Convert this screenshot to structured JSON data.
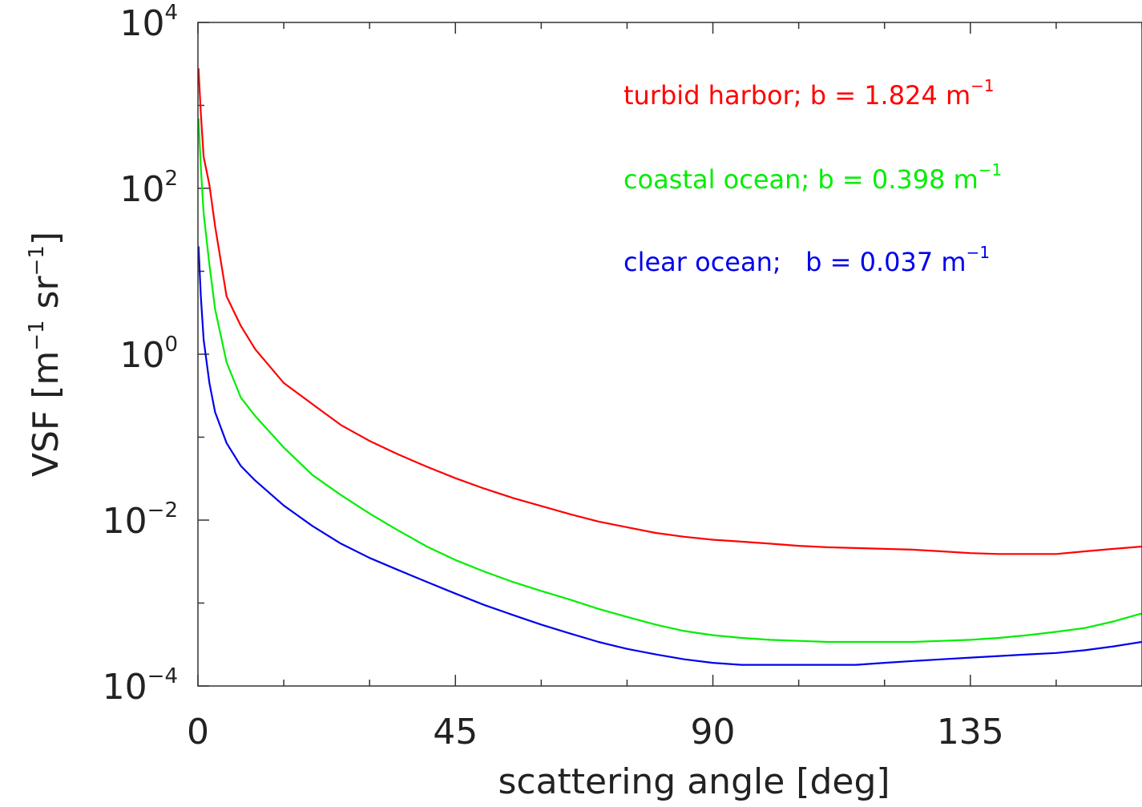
{
  "chart_data": {
    "type": "line",
    "title": "",
    "xlabel": "scattering angle [deg]",
    "ylabel_parts": {
      "pre": "VSF [m",
      "exp1": "−1",
      "mid": " sr",
      "exp2": "−1",
      "post": "]"
    },
    "x_scale": "linear",
    "y_scale": "log",
    "xlim": [
      0,
      165
    ],
    "ylim": [
      0.0001,
      10000
    ],
    "x_ticks": [
      {
        "value": 0,
        "label": "0"
      },
      {
        "value": 45,
        "label": "45"
      },
      {
        "value": 90,
        "label": "90"
      },
      {
        "value": 135,
        "label": "135"
      }
    ],
    "y_ticks": [
      {
        "value": 10000,
        "base": "10",
        "exp": "4"
      },
      {
        "value": 100,
        "base": "10",
        "exp": "2"
      },
      {
        "value": 1,
        "base": "10",
        "exp": "0"
      },
      {
        "value": 0.01,
        "base": "10",
        "exp": "−2"
      },
      {
        "value": 0.0001,
        "base": "10",
        "exp": "−4"
      }
    ],
    "legend_position": "top-right",
    "series": [
      {
        "name": "turbid harbor",
        "legend_text": "turbid harbor; b = 1.824 m",
        "legend_exp": "−1",
        "color": "#ff0000",
        "x": [
          0.1,
          0.5,
          1,
          2,
          3,
          5,
          7.5,
          10,
          15,
          20,
          25,
          30,
          35,
          40,
          45,
          50,
          55,
          60,
          65,
          70,
          75,
          80,
          85,
          90,
          95,
          100,
          105,
          110,
          115,
          120,
          125,
          130,
          135,
          140,
          145,
          150,
          155,
          160,
          165
        ],
        "y": [
          2800,
          800,
          240,
          110,
          35,
          5,
          2.2,
          1.15,
          0.45,
          0.25,
          0.14,
          0.09,
          0.062,
          0.044,
          0.032,
          0.024,
          0.0185,
          0.0148,
          0.0118,
          0.0096,
          0.0082,
          0.007,
          0.0063,
          0.0058,
          0.0055,
          0.0052,
          0.0049,
          0.0047,
          0.0046,
          0.0045,
          0.0044,
          0.0042,
          0.004,
          0.0039,
          0.0039,
          0.0039,
          0.0042,
          0.0045,
          0.0048
        ]
      },
      {
        "name": "coastal ocean",
        "legend_text": "coastal ocean; b = 0.398 m",
        "legend_exp": "−1",
        "color": "#00ee00",
        "x": [
          0.1,
          0.5,
          1,
          2,
          3,
          5,
          7.5,
          10,
          15,
          20,
          25,
          30,
          35,
          40,
          45,
          50,
          55,
          60,
          65,
          70,
          75,
          80,
          85,
          90,
          95,
          100,
          105,
          110,
          115,
          120,
          125,
          130,
          135,
          140,
          145,
          150,
          155,
          160,
          165
        ],
        "y": [
          700,
          180,
          50,
          12,
          3.5,
          0.8,
          0.3,
          0.18,
          0.075,
          0.035,
          0.02,
          0.012,
          0.0075,
          0.0048,
          0.0033,
          0.0024,
          0.0018,
          0.0014,
          0.0011,
          0.00085,
          0.00068,
          0.00055,
          0.00046,
          0.00041,
          0.00038,
          0.00036,
          0.00035,
          0.00034,
          0.00034,
          0.00034,
          0.00034,
          0.00035,
          0.00036,
          0.00038,
          0.00041,
          0.00045,
          0.0005,
          0.0006,
          0.00075
        ]
      },
      {
        "name": "clear ocean",
        "legend_text": "clear ocean;   b = 0.037 m",
        "legend_exp": "−1",
        "color": "#0000ee",
        "x": [
          0.1,
          0.5,
          1,
          2,
          3,
          5,
          7.5,
          10,
          15,
          20,
          25,
          30,
          35,
          40,
          45,
          50,
          55,
          60,
          65,
          70,
          75,
          80,
          85,
          90,
          95,
          100,
          105,
          110,
          115,
          120,
          125,
          130,
          135,
          140,
          145,
          150,
          155,
          160,
          165
        ],
        "y": [
          20,
          5,
          1.5,
          0.45,
          0.2,
          0.085,
          0.045,
          0.03,
          0.015,
          0.0085,
          0.0052,
          0.0035,
          0.0025,
          0.0018,
          0.0013,
          0.00095,
          0.00072,
          0.00055,
          0.00043,
          0.00034,
          0.00028,
          0.00024,
          0.00021,
          0.00019,
          0.00018,
          0.00018,
          0.00018,
          0.00018,
          0.00018,
          0.00019,
          0.0002,
          0.00021,
          0.00022,
          0.00023,
          0.00024,
          0.00025,
          0.00027,
          0.0003,
          0.00034
        ]
      }
    ]
  }
}
